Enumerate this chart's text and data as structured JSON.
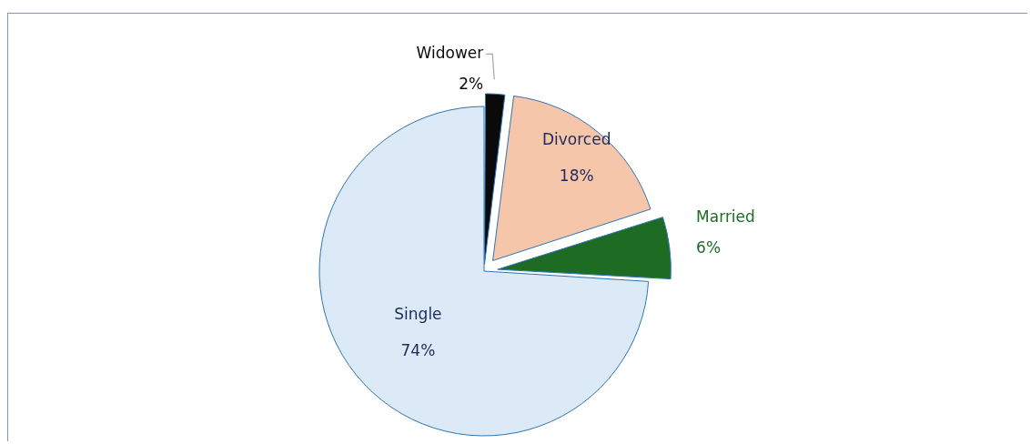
{
  "chart_data": {
    "type": "pie",
    "categories": [
      "Widower",
      "Divorced",
      "Married",
      "Single"
    ],
    "values": [
      2,
      18,
      6,
      74
    ],
    "colors": [
      "#0a0a0a",
      "#f5c6aa",
      "#1e6b23",
      "#dce9f6"
    ],
    "value_labels": [
      "2%",
      "18%",
      "6%",
      "74%"
    ],
    "legend": false
  }
}
